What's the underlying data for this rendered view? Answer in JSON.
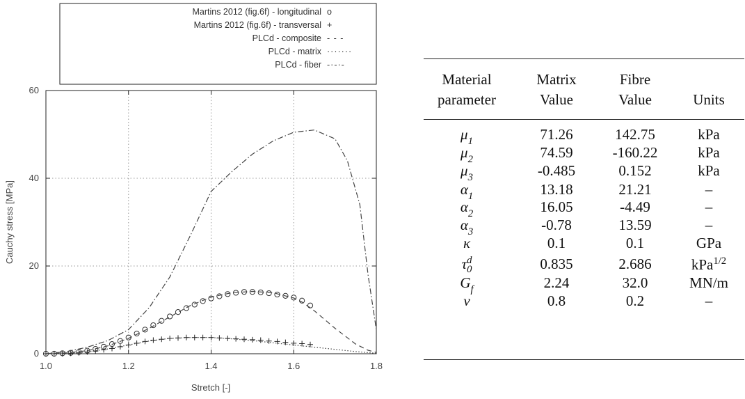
{
  "chart_data": {
    "type": "line",
    "xlabel": "Stretch [-]",
    "ylabel": "Cauchy stress [MPa]",
    "xlim": [
      1.0,
      1.8
    ],
    "ylim": [
      0,
      60
    ],
    "x_ticks": [
      "1.0",
      "1.2",
      "1.4",
      "1.6",
      "1.8"
    ],
    "y_ticks": [
      "0",
      "20",
      "40",
      "60"
    ],
    "grid": true,
    "legend_position": "top",
    "series": [
      {
        "name": "Martins 2012 (fig.6f) - longitudinal",
        "symbol": "o",
        "marker": "circle",
        "x": [
          1.0,
          1.02,
          1.04,
          1.06,
          1.08,
          1.1,
          1.12,
          1.14,
          1.16,
          1.18,
          1.2,
          1.22,
          1.24,
          1.26,
          1.28,
          1.3,
          1.32,
          1.34,
          1.36,
          1.38,
          1.4,
          1.42,
          1.44,
          1.46,
          1.48,
          1.5,
          1.52,
          1.54,
          1.56,
          1.58,
          1.6,
          1.62,
          1.64
        ],
        "y": [
          0,
          0,
          0.1,
          0.2,
          0.4,
          0.7,
          1.1,
          1.6,
          2.2,
          2.9,
          3.7,
          4.6,
          5.5,
          6.5,
          7.5,
          8.5,
          9.5,
          10.4,
          11.2,
          12.0,
          12.6,
          13.1,
          13.6,
          13.9,
          14.1,
          14.1,
          14.0,
          13.8,
          13.5,
          13.2,
          12.8,
          12.1,
          11.0
        ]
      },
      {
        "name": "Martins 2012 (fig.6f) - transversal",
        "symbol": "+",
        "marker": "plus",
        "x": [
          1.0,
          1.02,
          1.04,
          1.06,
          1.08,
          1.1,
          1.12,
          1.14,
          1.16,
          1.18,
          1.2,
          1.22,
          1.24,
          1.26,
          1.28,
          1.3,
          1.32,
          1.34,
          1.36,
          1.38,
          1.4,
          1.42,
          1.44,
          1.46,
          1.48,
          1.5,
          1.52,
          1.54,
          1.56,
          1.58,
          1.6,
          1.62,
          1.64
        ],
        "y": [
          0,
          0,
          0,
          0.1,
          0.2,
          0.4,
          0.6,
          0.9,
          1.2,
          1.6,
          2.0,
          2.4,
          2.8,
          3.1,
          3.3,
          3.5,
          3.6,
          3.7,
          3.7,
          3.7,
          3.7,
          3.6,
          3.5,
          3.4,
          3.3,
          3.2,
          3.1,
          2.9,
          2.8,
          2.6,
          2.4,
          2.3,
          2.1
        ]
      },
      {
        "name": "PLCd - composite",
        "symbol": "- - -",
        "style": "dashed",
        "x": [
          1.0,
          1.05,
          1.1,
          1.15,
          1.2,
          1.25,
          1.3,
          1.35,
          1.4,
          1.45,
          1.5,
          1.55,
          1.6,
          1.62,
          1.65,
          1.7,
          1.75,
          1.78,
          1.8
        ],
        "y": [
          0,
          0.2,
          0.7,
          1.8,
          3.5,
          5.8,
          8.4,
          11.0,
          12.9,
          13.9,
          14.2,
          13.9,
          12.7,
          11.8,
          9.8,
          5.8,
          2.2,
          0.8,
          0.3
        ]
      },
      {
        "name": "PLCd - matrix",
        "symbol": "·······",
        "style": "dotted",
        "x": [
          1.0,
          1.05,
          1.1,
          1.15,
          1.2,
          1.25,
          1.3,
          1.35,
          1.4,
          1.45,
          1.5,
          1.55,
          1.6,
          1.65,
          1.7,
          1.75,
          1.8
        ],
        "y": [
          0,
          0.1,
          0.4,
          1.1,
          2.0,
          2.9,
          3.5,
          3.7,
          3.7,
          3.4,
          3.0,
          2.5,
          2.0,
          1.5,
          1.0,
          0.5,
          0.1
        ]
      },
      {
        "name": "PLCd - fiber",
        "symbol": "-·-·-",
        "style": "dashdot",
        "x": [
          1.0,
          1.05,
          1.1,
          1.15,
          1.2,
          1.25,
          1.3,
          1.35,
          1.4,
          1.45,
          1.5,
          1.55,
          1.6,
          1.65,
          1.7,
          1.73,
          1.76,
          1.78,
          1.8
        ],
        "y": [
          0,
          0.5,
          1.5,
          3.0,
          5.5,
          10.5,
          17.5,
          27.0,
          37.0,
          41.5,
          45.5,
          48.5,
          50.5,
          51.0,
          49.0,
          44.0,
          34.0,
          18.0,
          5.5
        ]
      }
    ]
  },
  "table": {
    "header_row1": [
      "Material",
      "Matrix",
      "Fibre",
      ""
    ],
    "header_row2": [
      "parameter",
      "Value",
      "Value",
      "Units"
    ],
    "rows": [
      {
        "param": "μ",
        "sub": "1",
        "sup": "",
        "matrix": "71.26",
        "fibre": "142.75",
        "unit": "kPa",
        "unit_sup": ""
      },
      {
        "param": "μ",
        "sub": "2",
        "sup": "",
        "matrix": "74.59",
        "fibre": "-160.22",
        "unit": "kPa",
        "unit_sup": ""
      },
      {
        "param": "μ",
        "sub": "3",
        "sup": "",
        "matrix": "-0.485",
        "fibre": "0.152",
        "unit": "kPa",
        "unit_sup": ""
      },
      {
        "param": "α",
        "sub": "1",
        "sup": "",
        "matrix": "13.18",
        "fibre": "21.21",
        "unit": "–",
        "unit_sup": ""
      },
      {
        "param": "α",
        "sub": "2",
        "sup": "",
        "matrix": "16.05",
        "fibre": "-4.49",
        "unit": "–",
        "unit_sup": ""
      },
      {
        "param": "α",
        "sub": "3",
        "sup": "",
        "matrix": "-0.78",
        "fibre": "13.59",
        "unit": "–",
        "unit_sup": ""
      },
      {
        "param": "κ",
        "sub": "",
        "sup": "",
        "matrix": "0.1",
        "fibre": "0.1",
        "unit": "GPa",
        "unit_sup": ""
      },
      {
        "param": "τ",
        "sub": "0",
        "sup": "d",
        "matrix": "0.835",
        "fibre": "2.686",
        "unit": "kPa",
        "unit_sup": "1/2"
      },
      {
        "param": "G",
        "sub": "f",
        "sup": "",
        "matrix": "2.24",
        "fibre": "32.0",
        "unit": "MN/m",
        "unit_sup": ""
      },
      {
        "param": "v",
        "sub": "",
        "sup": "",
        "matrix": "0.8",
        "fibre": "0.2",
        "unit": "–",
        "unit_sup": ""
      }
    ]
  }
}
